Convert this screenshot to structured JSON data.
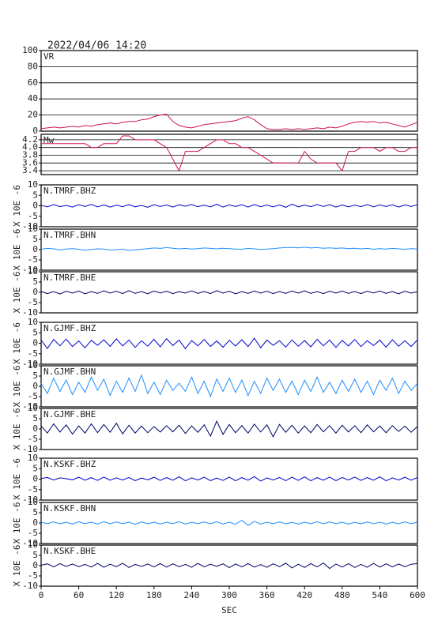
{
  "chart_data": {
    "type": "line",
    "title": "2022/04/06  14:20",
    "xlabel": "SEC",
    "x": [
      0,
      10,
      20,
      30,
      40,
      50,
      60,
      70,
      80,
      90,
      100,
      110,
      120,
      130,
      140,
      150,
      160,
      170,
      180,
      190,
      200,
      210,
      220,
      230,
      240,
      250,
      260,
      270,
      280,
      290,
      300,
      310,
      320,
      330,
      340,
      350,
      360,
      370,
      380,
      390,
      400,
      410,
      420,
      430,
      440,
      450,
      460,
      470,
      480,
      490,
      500,
      510,
      520,
      530,
      540,
      550,
      560,
      570,
      580,
      590,
      600
    ],
    "xlim": [
      0,
      600
    ],
    "xticks": [
      0,
      60,
      120,
      180,
      240,
      300,
      360,
      420,
      480,
      540,
      600
    ],
    "panels": [
      {
        "ylim": [
          0,
          100
        ],
        "yticks": [
          0,
          20,
          40,
          60,
          80,
          100
        ],
        "grid": true,
        "series": [
          {
            "name": "VR",
            "color": "#d0104c",
            "values": [
              3,
              4,
              5,
              4,
              5,
              6,
              5,
              7,
              6,
              8,
              9,
              10,
              9,
              11,
              12,
              12,
              14,
              15,
              18,
              20,
              21,
              12,
              7,
              5,
              4,
              6,
              8,
              9,
              10,
              11,
              12,
              13,
              16,
              18,
              14,
              8,
              3,
              2,
              2,
              3,
              2,
              3,
              2,
              3,
              4,
              3,
              5,
              4,
              6,
              9,
              11,
              12,
              11,
              12,
              10,
              11,
              9,
              7,
              5,
              8,
              11
            ]
          }
        ]
      },
      {
        "ylim": [
          3.3,
          4.34
        ],
        "yticks": [
          3.4,
          3.6,
          3.8,
          {
            "value": 4,
            "label": "4.0"
          },
          4.2
        ],
        "grid": true,
        "series": [
          {
            "name": "Mw",
            "color": "#d0104c",
            "values": [
              4.1,
              4.1,
              4.1,
              4.1,
              4.1,
              4.1,
              4.1,
              4.1,
              4.0,
              4.0,
              4.1,
              4.1,
              4.1,
              4.3,
              4.3,
              4.2,
              4.2,
              4.2,
              4.2,
              4.1,
              4.0,
              3.7,
              3.4,
              3.9,
              3.9,
              3.9,
              4.0,
              4.1,
              4.2,
              4.2,
              4.1,
              4.1,
              4.0,
              4.0,
              3.9,
              3.8,
              3.7,
              3.6,
              3.6,
              3.6,
              3.6,
              3.6,
              3.9,
              3.7,
              3.6,
              3.6,
              3.6,
              3.6,
              3.4,
              3.9,
              3.9,
              4.0,
              4.0,
              4.0,
              3.9,
              4.0,
              4.0,
              3.9,
              3.9,
              4.0,
              4.0
            ]
          }
        ]
      },
      {
        "ylabel": "X 10E -6",
        "ylim": [
          -10,
          10
        ],
        "yticks": [
          -10,
          -5,
          0,
          5,
          10
        ],
        "grid": false,
        "series": [
          {
            "name": "N.TMRF.BHZ",
            "color": "#0000cc",
            "values": [
              0.3,
              -0.5,
              0.6,
              -0.4,
              0.2,
              -0.6,
              0.5,
              -0.3,
              0.7,
              -0.5,
              0.4,
              -0.6,
              0.3,
              -0.4,
              0.6,
              -0.5,
              0.2,
              -0.7,
              0.5,
              -0.3,
              0.4,
              -0.6,
              0.5,
              -0.2,
              0.6,
              -0.4,
              0.3,
              -0.5,
              0.7,
              -0.6,
              0.4,
              -0.3,
              0.5,
              -0.6,
              0.6,
              -0.4,
              0.3,
              -0.5,
              0.4,
              -0.7,
              0.8,
              -0.5,
              0.3,
              -0.4,
              0.6,
              -0.3,
              0.5,
              -0.6,
              0.4,
              -0.5,
              0.3,
              -0.4,
              0.6,
              -0.5,
              0.4,
              -0.3,
              0.5,
              -0.6,
              0.4,
              -0.3,
              0.5
            ]
          }
        ]
      },
      {
        "ylabel": "X 10E -6",
        "ylim": [
          -10,
          10
        ],
        "yticks": [
          -10,
          -5,
          0,
          5,
          10
        ],
        "grid": false,
        "series": [
          {
            "name": "N.TMRF.BHN",
            "color": "#1e8fff",
            "values": [
              0.2,
              0.6,
              0.4,
              -0.1,
              0.3,
              0.5,
              0.2,
              -0.3,
              0.1,
              0.4,
              0.3,
              -0.2,
              0.0,
              0.3,
              -0.4,
              -0.1,
              0.2,
              0.5,
              0.8,
              0.6,
              1.0,
              0.7,
              0.4,
              0.6,
              0.3,
              0.5,
              0.8,
              0.6,
              0.4,
              0.7,
              0.5,
              0.3,
              0.2,
              0.6,
              0.4,
              0.1,
              0.3,
              0.5,
              0.8,
              1.0,
              1.1,
              0.9,
              1.2,
              0.8,
              1.0,
              0.7,
              0.9,
              0.6,
              0.8,
              0.5,
              0.7,
              0.4,
              0.6,
              0.2,
              0.5,
              0.3,
              0.6,
              0.4,
              0.2,
              0.5,
              0.3
            ]
          }
        ]
      },
      {
        "ylabel": "X 10E -6",
        "ylim": [
          -10,
          10
        ],
        "yticks": [
          -10,
          -5,
          0,
          5,
          10
        ],
        "grid": false,
        "series": [
          {
            "name": "N.TMRF.BHE",
            "color": "#000066",
            "values": [
              0.4,
              -0.6,
              0.3,
              -0.8,
              0.5,
              -0.4,
              0.6,
              -0.7,
              0.3,
              -0.5,
              0.7,
              -0.4,
              0.5,
              -0.6,
              0.8,
              -0.5,
              0.4,
              -0.7,
              0.6,
              -0.3,
              0.5,
              -0.6,
              0.3,
              -0.4,
              0.7,
              -0.5,
              0.4,
              -0.6,
              0.8,
              -0.4,
              0.5,
              -0.7,
              0.3,
              -0.5,
              0.6,
              -0.4,
              0.5,
              -0.6,
              0.4,
              -0.5,
              0.6,
              -0.4,
              0.7,
              -0.5,
              0.3,
              -0.6,
              0.5,
              -0.4,
              0.6,
              -0.5,
              0.4,
              -0.6,
              0.5,
              -0.3,
              0.6,
              -0.5,
              0.4,
              -0.7,
              0.5,
              -0.4,
              0.3
            ]
          }
        ]
      },
      {
        "ylabel": "X 10E -6",
        "ylim": [
          -10,
          10
        ],
        "yticks": [
          -10,
          -5,
          0,
          5,
          10
        ],
        "grid": false,
        "series": [
          {
            "name": "N.GJMF.BHZ",
            "color": "#0000cc",
            "values": [
              1.5,
              -2.5,
              1.8,
              -1.2,
              2.0,
              -1.6,
              1.1,
              -2.2,
              1.4,
              -1.0,
              1.7,
              -1.5,
              2.1,
              -1.3,
              1.6,
              -2.0,
              1.2,
              -1.4,
              1.9,
              -1.7,
              2.2,
              -1.1,
              1.5,
              -2.6,
              1.3,
              -1.2,
              1.8,
              -1.5,
              1.1,
              -1.9,
              1.4,
              -1.3,
              1.7,
              -1.6,
              2.4,
              -2.1,
              1.5,
              -1.0,
              1.2,
              -1.8,
              1.6,
              -1.4,
              1.3,
              -1.7,
              1.9,
              -1.2,
              1.5,
              -2.0,
              1.4,
              -1.3,
              1.8,
              -1.6,
              1.2,
              -1.1,
              1.5,
              -1.9,
              1.7,
              -1.4,
              1.2,
              -1.5,
              1.6
            ]
          }
        ]
      },
      {
        "ylabel": "X 10E -6",
        "ylim": [
          -10,
          10
        ],
        "yticks": [
          -10,
          -5,
          0,
          5,
          10
        ],
        "grid": false,
        "series": [
          {
            "name": "N.GJMF.BHN",
            "color": "#1e8fff",
            "values": [
              1.5,
              -3.5,
              4.0,
              -2.5,
              3.0,
              -4.0,
              2.0,
              -3.0,
              4.5,
              -2.0,
              3.5,
              -4.5,
              2.5,
              -3.0,
              4.0,
              -2.5,
              5.5,
              -3.5,
              2.0,
              -4.0,
              3.0,
              -2.0,
              1.5,
              -2.5,
              4.5,
              -3.5,
              2.5,
              -5.0,
              3.5,
              -2.5,
              4.0,
              -3.0,
              3.0,
              -4.5,
              2.5,
              -3.5,
              4.0,
              -2.0,
              3.5,
              -3.0,
              2.5,
              -4.0,
              3.0,
              -2.5,
              4.5,
              -3.0,
              2.0,
              -3.5,
              3.0,
              -2.5,
              3.5,
              -3.0,
              2.5,
              -4.0,
              3.0,
              -2.0,
              4.0,
              -3.5,
              2.5,
              -2.0,
              1.5
            ]
          }
        ]
      },
      {
        "ylabel": "X 10E -6",
        "ylim": [
          -10,
          10
        ],
        "yticks": [
          -10,
          -5,
          0,
          5,
          10
        ],
        "grid": false,
        "series": [
          {
            "name": "N.GJMF.BHE",
            "color": "#000066",
            "values": [
              1.5,
              -2.0,
              2.5,
              -1.5,
              2.0,
              -2.5,
              1.5,
              -2.0,
              2.5,
              -1.8,
              2.2,
              -1.6,
              2.8,
              -2.4,
              1.8,
              -2.0,
              1.4,
              -1.8,
              1.2,
              -1.5,
              1.6,
              -1.4,
              1.8,
              -2.2,
              1.5,
              -1.6,
              2.0,
              -3.5,
              3.8,
              -2.6,
              2.2,
              -1.8,
              1.6,
              -2.0,
              2.4,
              -1.5,
              2.0,
              -3.8,
              2.2,
              -1.6,
              1.8,
              -2.0,
              1.5,
              -1.8,
              2.2,
              -1.4,
              1.6,
              -2.0,
              1.8,
              -1.5,
              1.6,
              -1.8,
              2.0,
              -1.4,
              1.5,
              -1.8,
              1.6,
              -1.2,
              1.4,
              -1.6,
              1.2
            ]
          }
        ]
      },
      {
        "ylabel": "X 10E -6",
        "ylim": [
          -10,
          10
        ],
        "yticks": [
          -10,
          -5,
          0,
          5,
          10
        ],
        "grid": false,
        "series": [
          {
            "name": "N.KSKF.BHZ",
            "color": "#0000cc",
            "values": [
              0.3,
              0.8,
              -0.4,
              0.6,
              0.2,
              -0.3,
              0.9,
              -0.5,
              0.7,
              -0.6,
              1.0,
              -0.5,
              0.6,
              -0.4,
              0.8,
              -0.7,
              0.5,
              -0.3,
              0.9,
              -0.6,
              0.7,
              -0.5,
              1.1,
              -0.8,
              0.6,
              -0.4,
              0.9,
              -0.7,
              0.5,
              -0.6,
              1.0,
              -0.8,
              0.7,
              -0.5,
              1.2,
              -0.9,
              0.6,
              -0.4,
              0.8,
              -0.7,
              0.9,
              -0.6,
              1.1,
              -0.8,
              0.7,
              -0.5,
              1.0,
              -0.7,
              0.8,
              -0.4,
              1.0,
              -0.6,
              0.7,
              -0.5,
              1.1,
              -0.8,
              0.6,
              -0.4,
              0.9,
              -0.5,
              0.8
            ]
          }
        ]
      },
      {
        "ylabel": "X 10E -6",
        "ylim": [
          -10,
          10
        ],
        "yticks": [
          -10,
          -5,
          0,
          5,
          10
        ],
        "grid": false,
        "series": [
          {
            "name": "N.KSKF.BHN",
            "color": "#1e8fff",
            "values": [
              0.4,
              -0.3,
              0.5,
              -0.4,
              0.3,
              -0.5,
              0.6,
              -0.3,
              0.4,
              -0.5,
              0.6,
              -0.4,
              0.5,
              -0.3,
              0.4,
              -0.6,
              0.5,
              -0.4,
              0.3,
              -0.5,
              0.4,
              -0.3,
              0.6,
              -0.5,
              0.4,
              -0.3,
              0.5,
              -0.4,
              0.6,
              -0.5,
              0.4,
              -0.6,
              1.3,
              -1.2,
              0.8,
              -0.5,
              0.4,
              -0.3,
              0.5,
              -0.4,
              0.3,
              -0.5,
              0.4,
              -0.3,
              0.6,
              -0.4,
              0.5,
              -0.3,
              0.4,
              -0.5,
              0.3,
              -0.4,
              0.5,
              -0.3,
              0.4,
              -0.5,
              0.3,
              -0.4,
              0.5,
              -0.3,
              0.4
            ]
          }
        ]
      },
      {
        "ylabel": "X 10E -6",
        "ylim": [
          -10,
          10
        ],
        "yticks": [
          -10,
          -5,
          0,
          5,
          10
        ],
        "grid": false,
        "series": [
          {
            "name": "N.KSKF.BHE",
            "color": "#000066",
            "values": [
              0.2,
              0.9,
              -0.6,
              1.0,
              -0.4,
              0.8,
              -0.5,
              0.6,
              -0.7,
              1.1,
              -0.8,
              0.7,
              -0.5,
              1.2,
              -0.9,
              0.6,
              -0.4,
              0.8,
              -0.6,
              1.0,
              -0.7,
              0.9,
              -0.5,
              0.6,
              -0.8,
              1.1,
              -0.6,
              0.7,
              -0.4,
              0.9,
              -1.0,
              0.8,
              -0.6,
              1.0,
              -0.7,
              0.5,
              -0.8,
              0.9,
              -0.5,
              1.2,
              -1.1,
              0.7,
              -0.9,
              1.0,
              -0.6,
              1.3,
              -1.4,
              0.8,
              -0.7,
              1.0,
              -0.9,
              0.6,
              -0.8,
              1.1,
              -0.7,
              0.9,
              -0.6,
              0.8,
              -0.5,
              0.7,
              1.0
            ]
          }
        ]
      }
    ]
  }
}
